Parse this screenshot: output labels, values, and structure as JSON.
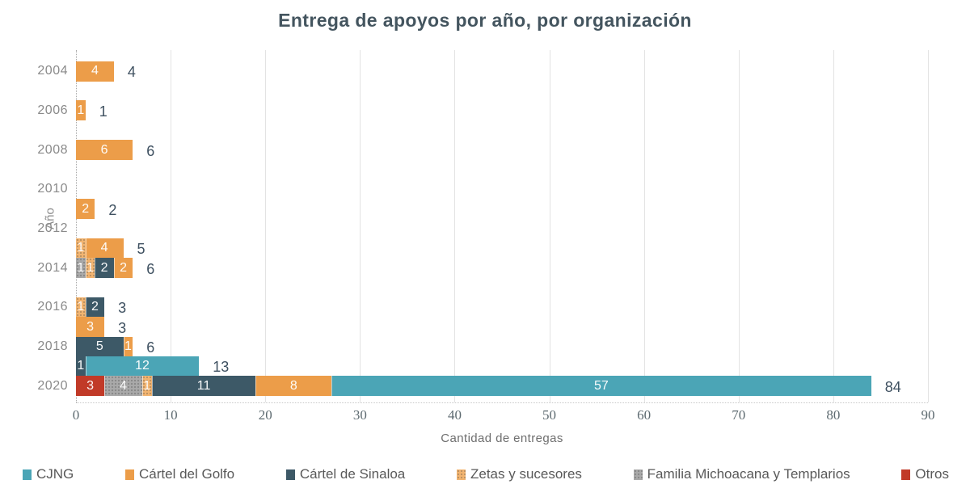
{
  "colors": {
    "title": "#44555F",
    "axis_text": "#8A8A8A",
    "total_labels": "#3E5060",
    "gridline": "#E3E3E3"
  },
  "chart_data": {
    "type": "bar",
    "orientation": "horizontal",
    "stacked": true,
    "title": "Entrega de apoyos por año, por organización",
    "xlabel": "Cantidad de entregas",
    "ylabel": "Año",
    "xlim": [
      0,
      90
    ],
    "xticks": [
      0,
      10,
      20,
      30,
      40,
      50,
      60,
      70,
      80,
      90
    ],
    "ytick_years": [
      2004,
      2006,
      2008,
      2010,
      2012,
      2014,
      2016,
      2018,
      2020
    ],
    "grid": true,
    "legend_position": "bottom",
    "series": [
      {
        "name": "CJNG",
        "color": "#4BA5B6",
        "pattern": false
      },
      {
        "name": "Cártel del Golfo",
        "color": "#EC9D49",
        "pattern": false
      },
      {
        "name": "Cártel de Sinaloa",
        "color": "#3D5967",
        "pattern": false
      },
      {
        "name": "Zetas y sucesores",
        "color": "#F2B470",
        "pattern": true
      },
      {
        "name": "Familia Michoacana y Templarios",
        "color": "#A9A9A9",
        "pattern": true
      },
      {
        "name": "Otros",
        "color": "#C13A28",
        "pattern": false
      }
    ],
    "rows": [
      {
        "year": 2004,
        "total": 4,
        "segments": [
          {
            "series": "Cártel del Golfo",
            "value": 4
          }
        ]
      },
      {
        "year": 2006,
        "total": 1,
        "segments": [
          {
            "series": "Cártel del Golfo",
            "value": 1
          }
        ]
      },
      {
        "year": 2008,
        "total": 6,
        "segments": [
          {
            "series": "Cártel del Golfo",
            "value": 6
          }
        ]
      },
      {
        "year": 2011,
        "total": 2,
        "segments": [
          {
            "series": "Cártel del Golfo",
            "value": 2
          }
        ]
      },
      {
        "year": 2013,
        "total": 5,
        "segments": [
          {
            "series": "Zetas y sucesores",
            "value": 1
          },
          {
            "series": "Cártel del Golfo",
            "value": 4
          }
        ]
      },
      {
        "year": 2014,
        "total": 6,
        "segments": [
          {
            "series": "Familia Michoacana y Templarios",
            "value": 1
          },
          {
            "series": "Zetas y sucesores",
            "value": 1
          },
          {
            "series": "Cártel de Sinaloa",
            "value": 2
          },
          {
            "series": "Cártel del Golfo",
            "value": 2
          }
        ]
      },
      {
        "year": 2016,
        "total": 3,
        "segments": [
          {
            "series": "Zetas y sucesores",
            "value": 1
          },
          {
            "series": "Cártel de Sinaloa",
            "value": 2
          }
        ]
      },
      {
        "year": 2017,
        "total": 3,
        "segments": [
          {
            "series": "Cártel del Golfo",
            "value": 3
          }
        ]
      },
      {
        "year": 2018,
        "total": 6,
        "segments": [
          {
            "series": "Cártel de Sinaloa",
            "value": 5
          },
          {
            "series": "Cártel del Golfo",
            "value": 1
          }
        ]
      },
      {
        "year": 2019,
        "total": 13,
        "segments": [
          {
            "series": "Cártel de Sinaloa",
            "value": 1
          },
          {
            "series": "CJNG",
            "value": 12
          }
        ]
      },
      {
        "year": 2020,
        "total": 84,
        "segments": [
          {
            "series": "Otros",
            "value": 3
          },
          {
            "series": "Familia Michoacana y Templarios",
            "value": 4
          },
          {
            "series": "Zetas y sucesores",
            "value": 1
          },
          {
            "series": "Cártel de Sinaloa",
            "value": 11
          },
          {
            "series": "Cártel del Golfo",
            "value": 8
          },
          {
            "series": "CJNG",
            "value": 57
          }
        ]
      }
    ]
  }
}
